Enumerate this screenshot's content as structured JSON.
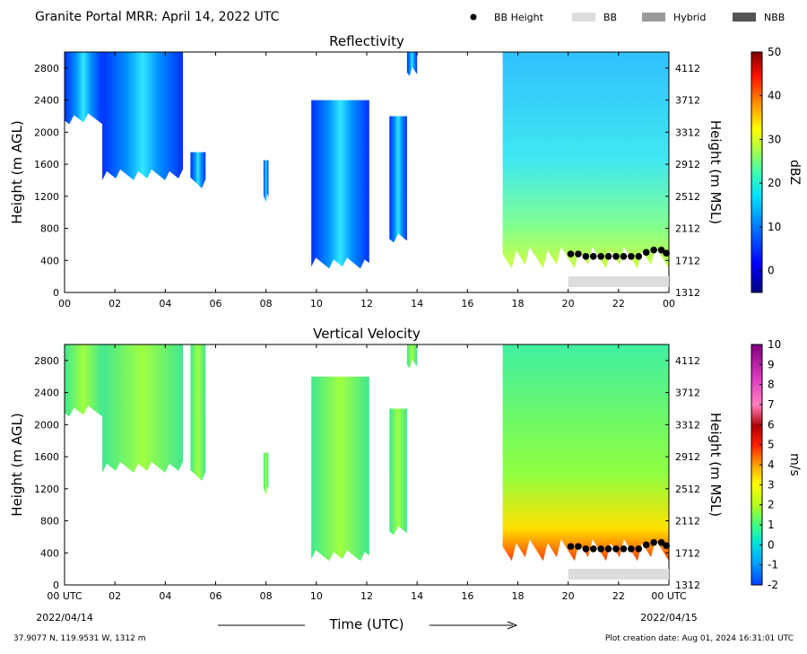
{
  "header": {
    "title": "Granite Portal MRR:  April 14, 2022 UTC",
    "legend": [
      {
        "label": "BB Height",
        "marker": "dot",
        "color": "#000000"
      },
      {
        "label": "BB",
        "marker": "bar",
        "color": "#dddddd"
      },
      {
        "label": "Hybrid",
        "marker": "bar",
        "color": "#999999"
      },
      {
        "label": "NBB",
        "marker": "bar",
        "color": "#555555"
      }
    ]
  },
  "footer": {
    "location": "37.9077 N, 119.9531 W, 1312 m",
    "creation": "Plot creation date: Aug 01, 2024 16:31:01 UTC",
    "time_label": "Time (UTC)",
    "start_date": "2022/04/14",
    "end_date": "2022/04/15"
  },
  "chart_data": [
    {
      "type": "heatmap",
      "title": "Reflectivity",
      "ylabel": "Height (m AGL)",
      "ylabel_right": "Height (m MSL)",
      "colorbar_label": "dBZ",
      "xlim": [
        0,
        24
      ],
      "ylim": [
        0,
        3000
      ],
      "xticks": [
        "00",
        "02",
        "04",
        "06",
        "08",
        "10",
        "12",
        "14",
        "16",
        "18",
        "20",
        "22",
        "00"
      ],
      "yticks_left": [
        0,
        400,
        800,
        1200,
        1600,
        2000,
        2400,
        2800
      ],
      "yticks_right": [
        1312,
        1712,
        2112,
        2512,
        2912,
        3312,
        3712,
        4112
      ],
      "colorbar_ticks": [
        0,
        10,
        20,
        30,
        40,
        50
      ],
      "colorbar_range": [
        -5,
        50
      ],
      "echo_regions": [
        {
          "x": [
            0.0,
            1.5
          ],
          "bottom": 2100,
          "top": 3000
        },
        {
          "x": [
            1.5,
            4.7
          ],
          "bottom": 1400,
          "top": 3000
        },
        {
          "x": [
            5.0,
            5.6
          ],
          "bottom": 1300,
          "top": 1750
        },
        {
          "x": [
            7.9,
            8.1
          ],
          "bottom": 1100,
          "top": 1650
        },
        {
          "x": [
            9.8,
            12.1
          ],
          "bottom": 300,
          "top": 2400
        },
        {
          "x": [
            12.9,
            13.6
          ],
          "bottom": 600,
          "top": 2200
        },
        {
          "x": [
            13.6,
            14.0
          ],
          "bottom": 2700,
          "top": 3000
        },
        {
          "x": [
            17.4,
            24.0
          ],
          "bottom": 300,
          "top": 3000
        }
      ],
      "bb_height": {
        "x": [
          20.1,
          20.4,
          20.7,
          21.0,
          21.3,
          21.6,
          21.9,
          22.2,
          22.5,
          22.8,
          23.1,
          23.4,
          23.7,
          23.9
        ],
        "y": [
          480,
          480,
          450,
          450,
          450,
          450,
          450,
          450,
          450,
          450,
          500,
          530,
          530,
          490
        ]
      },
      "bb_bar": {
        "x": [
          20.0,
          24.0
        ],
        "category": "BB"
      }
    },
    {
      "type": "heatmap",
      "title": "Vertical Velocity",
      "ylabel": "Height (m AGL)",
      "ylabel_right": "Height (m MSL)",
      "colorbar_label": "m/s",
      "xlim": [
        0,
        24
      ],
      "ylim": [
        0,
        3000
      ],
      "xticks": [
        "00 UTC",
        "02",
        "04",
        "06",
        "08",
        "10",
        "12",
        "14",
        "16",
        "18",
        "20",
        "22",
        "00 UTC"
      ],
      "yticks_left": [
        0,
        400,
        800,
        1200,
        1600,
        2000,
        2400,
        2800
      ],
      "yticks_right": [
        1312,
        1712,
        2112,
        2512,
        2912,
        3312,
        3712,
        4112
      ],
      "colorbar_ticks": [
        -2,
        -1,
        0,
        1,
        2,
        3,
        4,
        5,
        6,
        7,
        8,
        9,
        10
      ],
      "colorbar_range": [
        -2,
        10
      ],
      "echo_regions": [
        {
          "x": [
            0.0,
            1.5
          ],
          "bottom": 2100,
          "top": 3000
        },
        {
          "x": [
            1.5,
            4.7
          ],
          "bottom": 1400,
          "top": 3000
        },
        {
          "x": [
            5.0,
            5.6
          ],
          "bottom": 1300,
          "top": 3000
        },
        {
          "x": [
            7.9,
            8.1
          ],
          "bottom": 1100,
          "top": 1650
        },
        {
          "x": [
            9.8,
            12.1
          ],
          "bottom": 300,
          "top": 2600
        },
        {
          "x": [
            12.9,
            13.6
          ],
          "bottom": 600,
          "top": 2200
        },
        {
          "x": [
            13.6,
            14.0
          ],
          "bottom": 2700,
          "top": 3000
        },
        {
          "x": [
            17.4,
            24.0
          ],
          "bottom": 300,
          "top": 3000
        }
      ],
      "bb_height": {
        "x": [
          20.1,
          20.4,
          20.7,
          21.0,
          21.3,
          21.6,
          21.9,
          22.2,
          22.5,
          22.8,
          23.1,
          23.4,
          23.7,
          23.9
        ],
        "y": [
          480,
          480,
          450,
          450,
          450,
          450,
          450,
          450,
          450,
          450,
          500,
          530,
          530,
          490
        ]
      },
      "bb_bar": {
        "x": [
          20.0,
          24.0
        ],
        "category": "BB"
      }
    }
  ]
}
